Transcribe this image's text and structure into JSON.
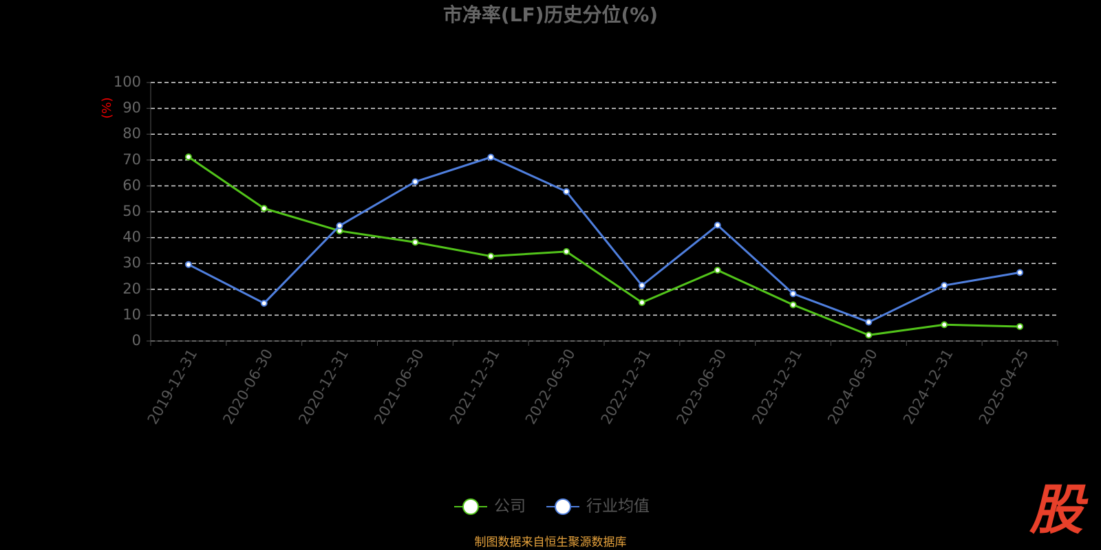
{
  "chart_data": {
    "type": "line",
    "title": "市净率(LF)历史分位(%)",
    "y_label": "(%)",
    "categories": [
      "2019-12-31",
      "2020-06-30",
      "2020-12-31",
      "2021-06-30",
      "2021-12-31",
      "2022-06-30",
      "2022-12-31",
      "2023-06-30",
      "2023-12-31",
      "2024-06-30",
      "2024-12-31",
      "2025-04-25"
    ],
    "series": [
      {
        "name": "公司",
        "color": "#52c41a",
        "values": [
          71.2,
          51.3,
          42.6,
          38.2,
          32.8,
          34.6,
          14.9,
          27.4,
          14.0,
          2.3,
          6.3,
          5.6
        ]
      },
      {
        "name": "行业均值",
        "color": "#4f7fde",
        "values": [
          29.6,
          14.6,
          44.6,
          61.6,
          71.1,
          57.8,
          21.5,
          44.8,
          18.3,
          7.3,
          21.5,
          26.5
        ]
      }
    ],
    "ylim": [
      0,
      100
    ],
    "yticks": [
      0,
      10,
      20,
      30,
      40,
      50,
      60,
      70,
      80,
      90,
      100
    ],
    "grid": true,
    "source": "制图数据来自恒生聚源数据库",
    "logo": "股"
  }
}
